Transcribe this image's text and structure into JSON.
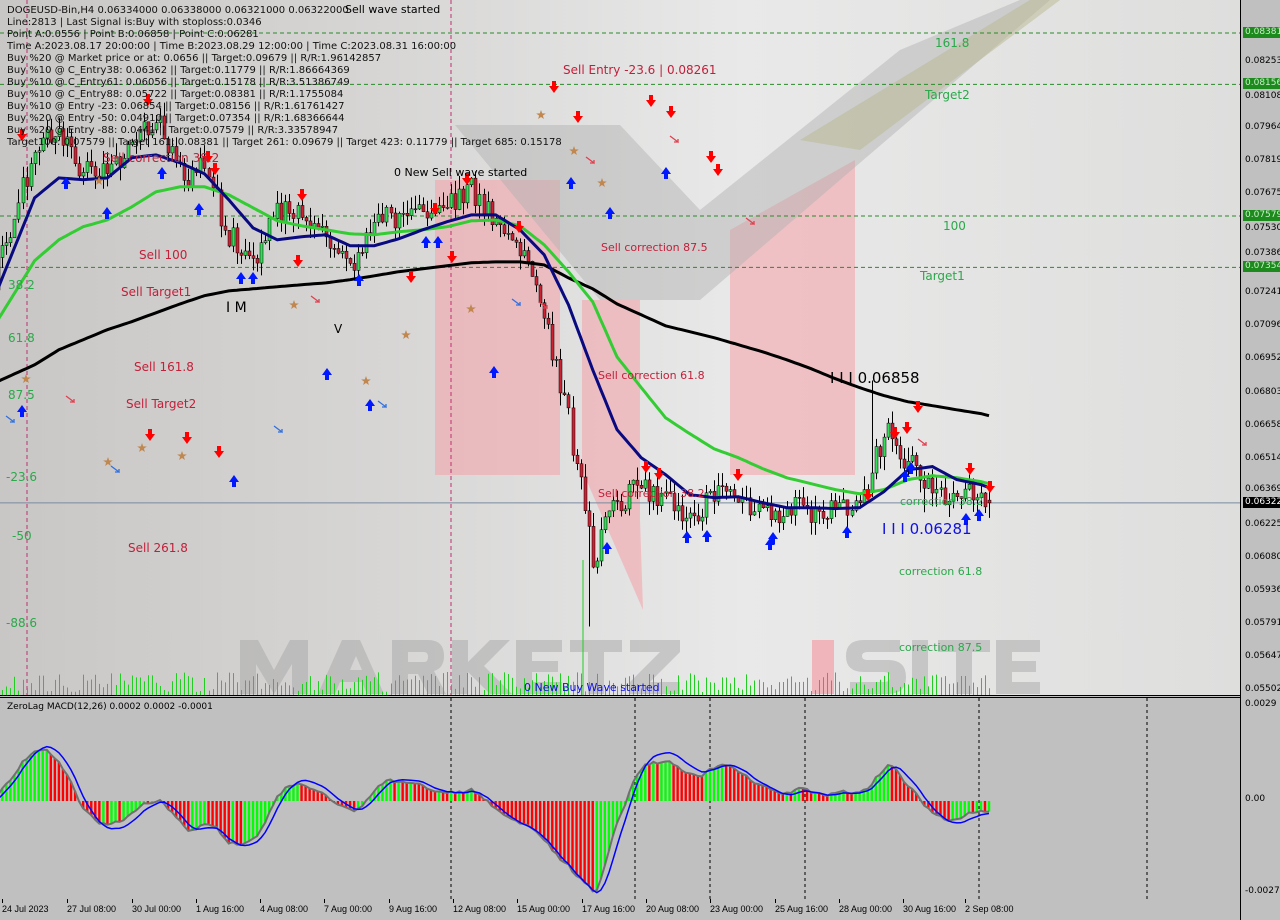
{
  "header": {
    "symbol_line": "DOGEUSD-Bin,H4  0.06334000 0.06338000 0.06321000 0.06322000",
    "info_lines": [
      "Line:2813 | Last Signal is:Buy with stoploss:0.0346",
      "Point A:0.0556 | Point B:0.06858 | Point C:0.06281",
      "Time A:2023.08.17 20:00:00 | Time B:2023.08.29 12:00:00 | Time C:2023.08.31 16:00:00",
      "Buy %20 @ Market price or at: 0.0656 || Target:0.09679 || R/R:1.96142857",
      "Buy %10 @ C_Entry38: 0.06362 || Target:0.11779 || R/R:1.86664369",
      "Buy %10 @ C_Entry61: 0.06056 || Target:0.15178 || R/R:3.51386749",
      "Buy %10 @ C_Entry88: 0.05722 || Target:0.08381 || R/R:1.1755084",
      "Buy %10 @ Entry -23: 0.06854 || Target:0.08156 || R/R:1.61761427",
      "Buy %20 @ Entry -50: 0.04910 || Target:0.07354 || R/R:1.68366644",
      "Buy %20 @ Entry -88: 0.0441 || Target:0.07579 || R/R:3.33578947",
      "Target100: 0.07579 || Target 161: 0.08381 || Target 261: 0.09679 || Target 423: 0.11779 || Target 685: 0.15178"
    ],
    "wave_label": "Sell wave started"
  },
  "annotations": {
    "sell_correction_382_left": "Sell correction 38.2",
    "sell_100": "Sell 100",
    "sell_target1": "Sell Target1",
    "sell_1618": "Sell 161.8",
    "sell_target2": "Sell Target2",
    "sell_2618": "Sell  261.8",
    "sell_entry": "Sell Entry -23.6 | 0.08261",
    "sell_correction_875": "Sell correction 87.5",
    "sell_correction_618": "Sell correction 61.8",
    "sell_correction_382": "Sell correction 38.2",
    "new_sell_wave": "0 New Sell wave started",
    "new_buy_wave": "0 New Buy Wave started",
    "point_b": "I I I 0.06858",
    "point_c": "I I I 0.06281",
    "correction_382": "correction 38.2",
    "correction_618": "correction 61.8",
    "correction_875": "correction 87.5",
    "level_1618": "161.8",
    "target2": "Target2",
    "level_100": "100",
    "target1": "Target1",
    "im_mark": "I M",
    "v_mark": "V",
    "fib_left": [
      "38.2",
      "61.8",
      "87.5",
      "-23.6",
      "-50",
      "-88.6"
    ]
  },
  "watermark": "MARKETZ SITE",
  "chart_data": {
    "type": "candlestick",
    "symbol": "DOGEUSD-Bin",
    "timeframe": "H4",
    "ohlc_last": {
      "open": 0.06334,
      "high": 0.06338,
      "low": 0.06321,
      "close": 0.06322
    },
    "ylim": [
      0.05502,
      0.08381
    ],
    "y_ticks": [
      "0.08253",
      "0.08108",
      "0.07964",
      "0.07819",
      "0.07675",
      "0.07530",
      "0.07386",
      "0.07241",
      "0.07096",
      "0.06952",
      "0.06803",
      "0.06658",
      "0.06514",
      "0.06369",
      "0.06225",
      "0.06080",
      "0.05936",
      "0.05791",
      "0.05647",
      "0.05502"
    ],
    "highlighted_levels": [
      {
        "value": "0.08381",
        "color": "#1c8a1c"
      },
      {
        "value": "0.08156",
        "color": "#1c8a1c"
      },
      {
        "value": "0.07579",
        "color": "#1c8a1c"
      },
      {
        "value": "0.07354",
        "color": "#1c8a1c"
      },
      {
        "value": "0.06322",
        "color": "#000000"
      }
    ],
    "x_ticks": [
      "24 Jul 2023",
      "27 Jul 08:00",
      "30 Jul 00:00",
      "1 Aug 16:00",
      "4 Aug 08:00",
      "7 Aug 00:00",
      "9 Aug 16:00",
      "12 Aug 08:00",
      "15 Aug 00:00",
      "17 Aug 16:00",
      "20 Aug 08:00",
      "23 Aug 00:00",
      "25 Aug 16:00",
      "28 Aug 00:00",
      "30 Aug 16:00",
      "2 Sep 08:00"
    ],
    "dates": [
      "2023-07-25 00:00",
      "2023-07-26 00:00",
      "2023-07-27 00:00",
      "2023-07-28 00:00",
      "2023-07-29 00:00",
      "2023-07-30 00:00",
      "2023-07-31 00:00",
      "2023-08-01 00:00",
      "2023-08-02 00:00",
      "2023-08-03 00:00",
      "2023-08-04 00:00",
      "2023-08-05 00:00",
      "2023-08-06 00:00",
      "2023-08-07 00:00",
      "2023-08-08 00:00",
      "2023-08-09 00:00",
      "2023-08-10 00:00",
      "2023-08-11 00:00",
      "2023-08-12 00:00",
      "2023-08-13 00:00",
      "2023-08-14 00:00",
      "2023-08-15 00:00",
      "2023-08-16 00:00",
      "2023-08-17 00:00",
      "2023-08-18 00:00",
      "2023-08-19 00:00",
      "2023-08-20 00:00",
      "2023-08-21 00:00",
      "2023-08-22 00:00",
      "2023-08-23 00:00",
      "2023-08-24 00:00",
      "2023-08-25 00:00",
      "2023-08-26 00:00",
      "2023-08-27 00:00",
      "2023-08-28 00:00",
      "2023-08-29 00:00",
      "2023-08-30 00:00",
      "2023-08-31 00:00",
      "2023-09-01 00:00",
      "2023-09-02 00:00",
      "2023-09-03 00:00",
      "2023-09-03 08:00"
    ],
    "close": [
      0.07518,
      0.07868,
      0.07956,
      0.07759,
      0.07759,
      0.07912,
      0.08022,
      0.07759,
      0.07781,
      0.07496,
      0.07387,
      0.07584,
      0.07606,
      0.07496,
      0.07365,
      0.0754,
      0.07584,
      0.07606,
      0.0765,
      0.07693,
      0.07562,
      0.07452,
      0.07124,
      0.06686,
      0.06073,
      0.06336,
      0.06379,
      0.06357,
      0.0627,
      0.06336,
      0.06357,
      0.06248,
      0.06292,
      0.06283,
      0.06292,
      0.0627,
      0.06642,
      0.06511,
      0.06357,
      0.06336,
      0.06357,
      0.06322
    ],
    "extremes": [
      {
        "date": "2023-08-17 20:00",
        "low": 0.0556
      },
      {
        "date": "2023-08-29 12:00",
        "high": 0.06858
      },
      {
        "date": "2023-08-31 16:00",
        "low": 0.06281
      }
    ],
    "ma_fast": {
      "color": "#0a0a80",
      "values": [
        0.07396,
        0.07659,
        0.07746,
        0.07738,
        0.07746,
        0.07834,
        0.07847,
        0.07812,
        0.07764,
        0.0765,
        0.07527,
        0.07475,
        0.07488,
        0.07497,
        0.07449,
        0.07449,
        0.07479,
        0.07519,
        0.07554,
        0.07584,
        0.07584,
        0.07519,
        0.07409,
        0.0719,
        0.06905,
        0.06643,
        0.0652,
        0.06446,
        0.06358,
        0.06345,
        0.06349,
        0.06323,
        0.06301,
        0.06301,
        0.06297,
        0.06301,
        0.06371,
        0.06467,
        0.06481,
        0.06424,
        0.06402,
        0.06389
      ]
    },
    "ma_mid": {
      "color": "#33cc33",
      "values": [
        0.07212,
        0.07383,
        0.07475,
        0.07532,
        0.07562,
        0.07619,
        0.07685,
        0.07707,
        0.07707,
        0.07672,
        0.07615,
        0.07558,
        0.07536,
        0.07519,
        0.07501,
        0.07497,
        0.0751,
        0.07519,
        0.07532,
        0.07558,
        0.07562,
        0.07536,
        0.07453,
        0.07335,
        0.07203,
        0.06962,
        0.06827,
        0.06695,
        0.06625,
        0.06559,
        0.0652,
        0.06472,
        0.06432,
        0.06406,
        0.0638,
        0.06362,
        0.0638,
        0.06424,
        0.06441,
        0.06432,
        0.06415,
        0.06406
      ]
    },
    "ma_slow": {
      "color": "#000000",
      "values": [
        0.06879,
        0.06927,
        0.06993,
        0.07037,
        0.07081,
        0.07116,
        0.07155,
        0.07194,
        0.0723,
        0.07251,
        0.0726,
        0.07269,
        0.07278,
        0.07286,
        0.073,
        0.07317,
        0.07335,
        0.07348,
        0.07361,
        0.07374,
        0.07378,
        0.07378,
        0.07365,
        0.07308,
        0.0726,
        0.07194,
        0.07146,
        0.07098,
        0.07072,
        0.07046,
        0.07015,
        0.06984,
        0.06949,
        0.0691,
        0.06866,
        0.06827,
        0.06792,
        0.06765,
        0.06748,
        0.0673,
        0.06713,
        0.06704
      ]
    },
    "levels": [
      {
        "label": "161.8",
        "value": 0.08381
      },
      {
        "label": "Target2",
        "value": 0.08156
      },
      {
        "label": "100",
        "value": 0.07579
      },
      {
        "label": "Target1",
        "value": 0.07354
      }
    ],
    "colors": {
      "bull": "#33dd55",
      "bear": "#cc2233",
      "sell_arrow": "#ff0000",
      "buy_arrow": "#0018ff"
    },
    "macd": {
      "title": "ZeroLag MACD(12,26) 0.0002 0.0002 -0.0001",
      "ylim": [
        -0.0027,
        0.0029
      ],
      "y_ticks": [
        "0.0029",
        "0.00",
        "-0.0027"
      ],
      "hist_up": "#00ff00",
      "hist_down": "#ff0000",
      "signal_color": "#0000ff"
    }
  }
}
